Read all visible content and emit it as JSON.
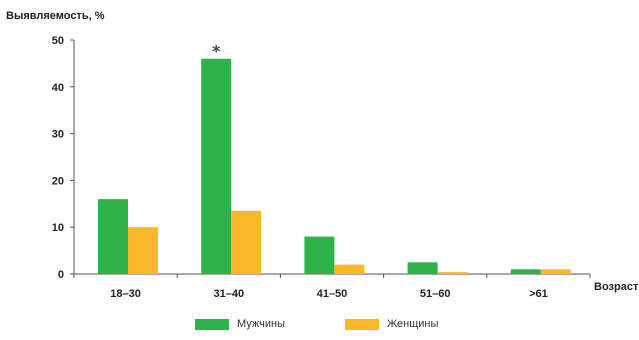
{
  "chart_data": {
    "type": "bar",
    "title": "",
    "ylabel": "Выявляемость, %",
    "xlabel": "Возраст",
    "ylim": [
      0,
      50
    ],
    "yticks": [
      0,
      10,
      20,
      30,
      40,
      50
    ],
    "categories": [
      "18–30",
      "31–40",
      "41–50",
      "51–60",
      ">61"
    ],
    "series": [
      {
        "name": "Мужчины",
        "color": "#2db34a",
        "values": [
          16,
          46,
          8,
          2.5,
          1
        ]
      },
      {
        "name": "Женщины",
        "color": "#fbb829",
        "values": [
          10,
          13.5,
          2,
          0.4,
          1
        ]
      }
    ],
    "annotations": [
      {
        "category": "31–40",
        "series": "Мужчины",
        "text": "*"
      }
    ],
    "grid": false,
    "legend_position": "bottom"
  }
}
